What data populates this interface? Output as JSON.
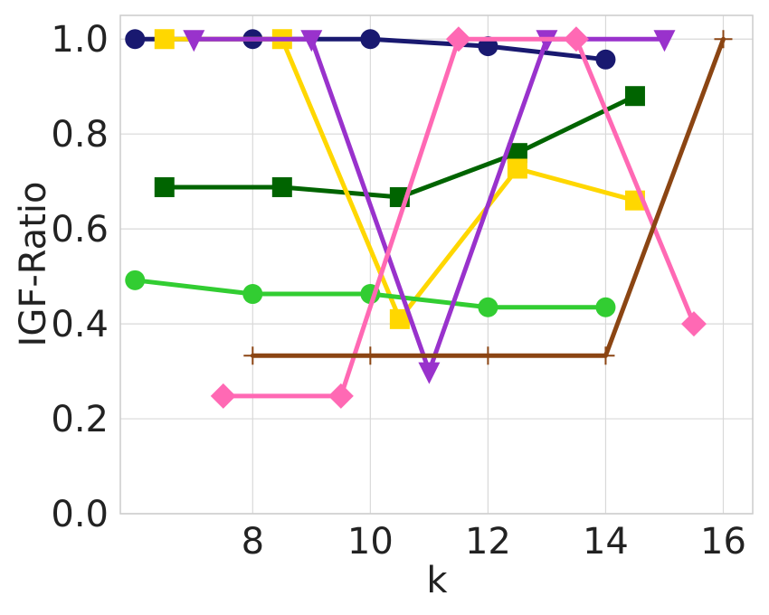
{
  "chart_data": {
    "type": "line",
    "xlabel": "k",
    "ylabel": "IGF-Ratio",
    "xlim": [
      5.75,
      16.5
    ],
    "ylim": [
      0.0,
      1.05
    ],
    "xticks": [
      8,
      10,
      12,
      14,
      16
    ],
    "yticks": [
      0.0,
      0.2,
      0.4,
      0.6,
      0.8,
      1.0
    ],
    "xtick_labels": [
      "8",
      "10",
      "12",
      "14",
      "16"
    ],
    "ytick_labels": [
      "0.0",
      "0.2",
      "0.4",
      "0.6",
      "0.8",
      "1.0"
    ],
    "grid": true,
    "series": [
      {
        "color": "#191970",
        "marker": "circle",
        "x": [
          6,
          8,
          10,
          12,
          14
        ],
        "y": [
          1.0,
          1.0,
          1.0,
          0.985,
          0.957
        ]
      },
      {
        "color": "#006400",
        "marker": "square",
        "x": [
          6.5,
          8.5,
          10.5,
          12.5,
          14.5
        ],
        "y": [
          0.688,
          0.688,
          0.667,
          0.76,
          0.88
        ]
      },
      {
        "color": "#FFD700",
        "marker": "square",
        "x": [
          6.5,
          8.5,
          10.5,
          12.5,
          14.5
        ],
        "y": [
          1.0,
          1.0,
          0.41,
          0.727,
          0.66
        ]
      },
      {
        "color": "#32CD32",
        "marker": "circle",
        "x": [
          6,
          8,
          10,
          12,
          14
        ],
        "y": [
          0.492,
          0.463,
          0.463,
          0.435,
          0.435
        ]
      },
      {
        "color": "#9932CC",
        "marker": "triangle-down",
        "x": [
          7,
          9,
          11,
          13,
          15
        ],
        "y": [
          1.0,
          1.0,
          0.3,
          1.0,
          1.0
        ]
      },
      {
        "color": "#FF69B4",
        "marker": "diamond",
        "x": [
          7.5,
          9.5,
          11.5,
          13.5,
          15.5
        ],
        "y": [
          0.248,
          0.248,
          1.0,
          1.0,
          0.4
        ]
      },
      {
        "color": "#8B4513",
        "marker": "plus",
        "x": [
          8,
          10,
          12,
          14,
          16
        ],
        "y": [
          0.333,
          0.333,
          0.333,
          0.333,
          1.0
        ]
      }
    ]
  }
}
